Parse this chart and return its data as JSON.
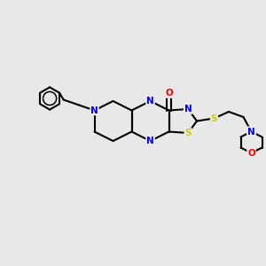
{
  "background_color": "#e8e8e8",
  "atom_colors": {
    "N": "#0000ff",
    "O": "#ff0000",
    "S": "#cccc00"
  },
  "bond_color": "#000000",
  "bond_width": 1.5,
  "figsize": [
    3.0,
    3.0
  ],
  "dpi": 100
}
